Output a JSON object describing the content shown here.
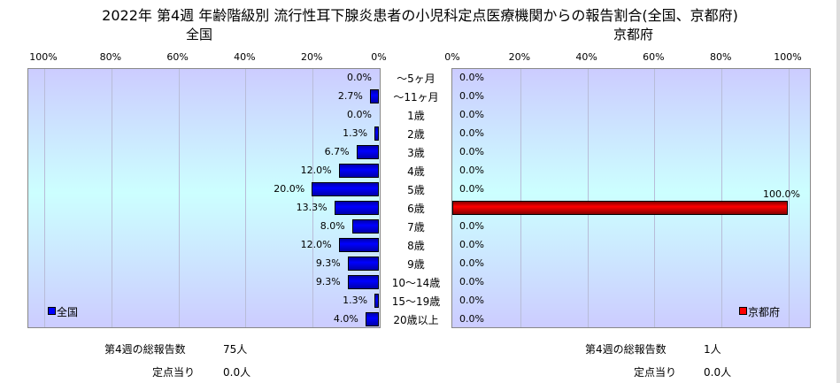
{
  "chart_data": {
    "type": "bar",
    "title": "2022年 第4週 年齢階級別 流行性耳下腺炎患者の小児科定点医療機関からの報告割合(全国、京都府)",
    "categories": [
      "～5ヶ月",
      "～11ヶ月",
      "1歳",
      "2歳",
      "3歳",
      "4歳",
      "5歳",
      "6歳",
      "7歳",
      "8歳",
      "9歳",
      "10～14歳",
      "15～19歳",
      "20歳以上"
    ],
    "series": [
      {
        "name": "全国",
        "color": "#0000ff",
        "values": [
          0.0,
          2.7,
          0.0,
          1.3,
          6.7,
          12.0,
          20.0,
          13.3,
          8.0,
          12.0,
          9.3,
          9.3,
          1.3,
          4.0
        ],
        "labels": [
          "0.0%",
          "2.7%",
          "0.0%",
          "1.3%",
          "6.7%",
          "12.0%",
          "20.0%",
          "13.3%",
          "8.0%",
          "12.0%",
          "9.3%",
          "9.3%",
          "1.3%",
          "4.0%"
        ]
      },
      {
        "name": "京都府",
        "color": "#ff0000",
        "values": [
          0,
          0,
          0,
          0,
          0,
          0,
          0,
          100,
          0,
          0,
          0,
          0,
          0,
          0
        ],
        "labels": [
          "0.0%",
          "0.0%",
          "0.0%",
          "0.0%",
          "0.0%",
          "0.0%",
          "0.0%",
          "100.0%",
          "0.0%",
          "0.0%",
          "0.0%",
          "0.0%",
          "0.0%",
          "0.0%"
        ]
      }
    ],
    "panel_titles": [
      "全国",
      "京都府"
    ],
    "left_ticks": [
      "100%",
      "80%",
      "60%",
      "40%",
      "20%",
      "0%"
    ],
    "right_ticks": [
      "0%",
      "20%",
      "40%",
      "60%",
      "80%",
      "100%"
    ],
    "xlim": [
      0,
      100
    ],
    "legend": [
      "bottom-left",
      "bottom-right"
    ]
  },
  "footer": {
    "national": {
      "total_label": "第4週の総報告数",
      "total_value": "75人",
      "per_label": "定点当り",
      "per_value": "0.0人"
    },
    "kyoto": {
      "total_label": "第4週の総報告数",
      "total_value": "1人",
      "per_label": "定点当り",
      "per_value": "0.0人"
    }
  }
}
